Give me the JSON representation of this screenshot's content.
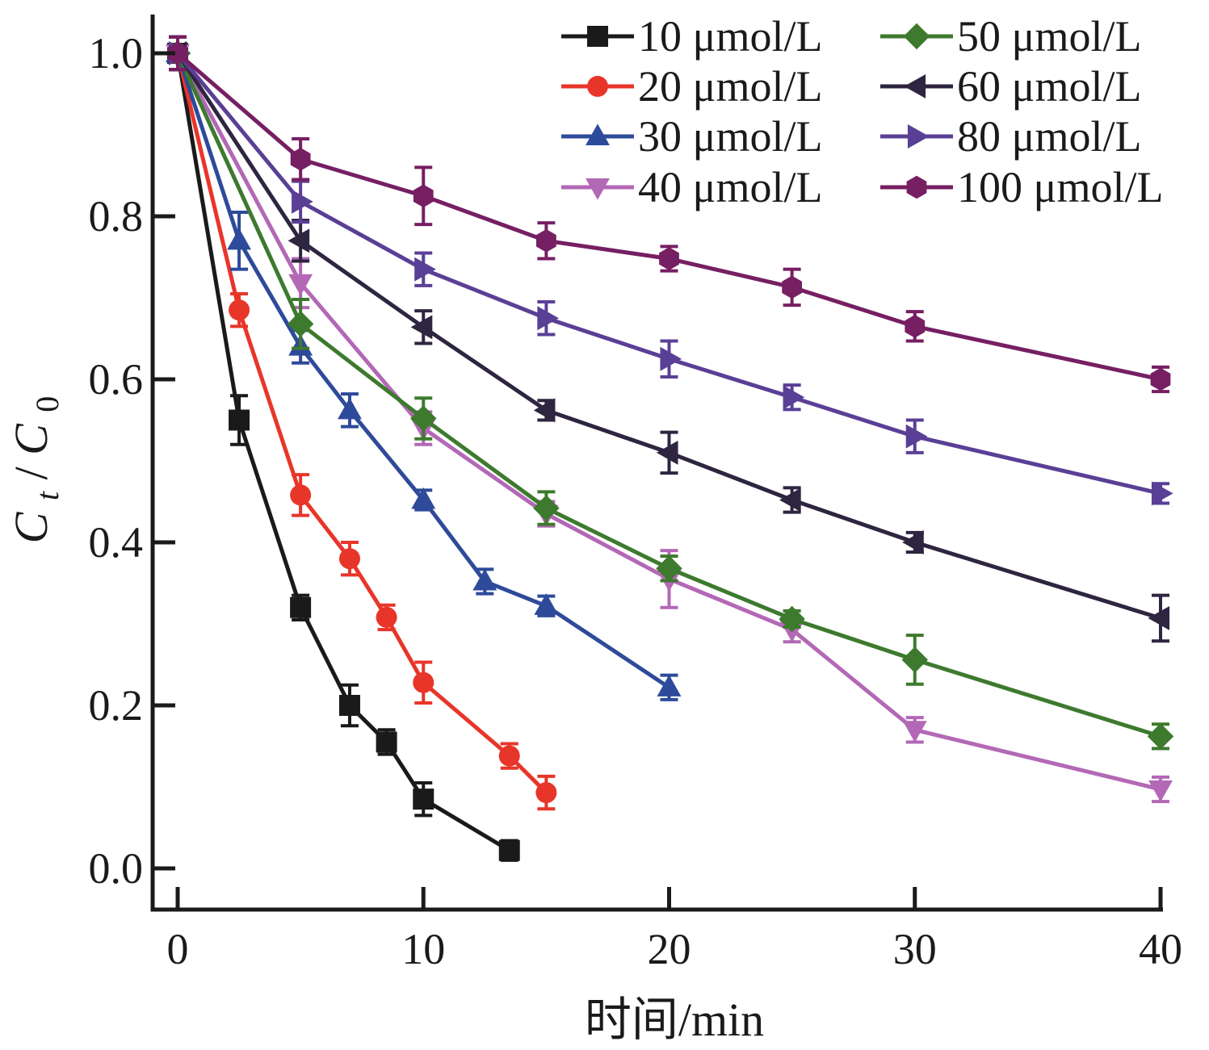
{
  "chart_data": {
    "type": "line",
    "xlabel": "时间/min",
    "ylabel": {
      "main": "C",
      "sub1": "t",
      "sep": "/",
      "main2": "C",
      "sub2": "0"
    },
    "xlim": [
      -1,
      40
    ],
    "ylim": [
      -0.05,
      1.05
    ],
    "xticks": [
      0,
      10,
      20,
      30,
      40
    ],
    "xtick_labels": [
      "0",
      "10",
      "20",
      "30",
      "40"
    ],
    "yticks": [
      0.0,
      0.2,
      0.4,
      0.6,
      0.8,
      1.0
    ],
    "ytick_labels": [
      "0.0",
      "0.2",
      "0.4",
      "0.6",
      "0.8",
      "1.0"
    ],
    "grid": false,
    "legend_position": "top-right",
    "series": [
      {
        "name": "10 μmol/L",
        "color": "#1a1a1a",
        "marker": "square",
        "x": [
          0,
          2.5,
          5,
          7,
          8.5,
          10,
          13.5
        ],
        "y": [
          1.0,
          0.55,
          0.32,
          0.2,
          0.155,
          0.085,
          0.022
        ],
        "err": [
          0.02,
          0.03,
          0.015,
          0.025,
          0.015,
          0.02,
          0.012
        ]
      },
      {
        "name": "20 μmol/L",
        "color": "#e8352a",
        "marker": "circle",
        "x": [
          0,
          2.5,
          5,
          7,
          8.5,
          10,
          13.5,
          15
        ],
        "y": [
          1.0,
          0.685,
          0.458,
          0.38,
          0.308,
          0.228,
          0.138,
          0.093
        ],
        "err": [
          0.02,
          0.02,
          0.025,
          0.02,
          0.015,
          0.025,
          0.015,
          0.02
        ]
      },
      {
        "name": "30 μmol/L",
        "color": "#2e4a9a",
        "marker": "triangle-up",
        "x": [
          0,
          2.5,
          5,
          7,
          10,
          12.5,
          15,
          20
        ],
        "y": [
          1.0,
          0.77,
          0.64,
          0.562,
          0.452,
          0.352,
          0.322,
          0.222
        ],
        "err": [
          0.02,
          0.035,
          0.02,
          0.02,
          0.012,
          0.015,
          0.012,
          0.015
        ]
      },
      {
        "name": "40 μmol/L",
        "color": "#b368b6",
        "marker": "triangle-down",
        "x": [
          0,
          5,
          10,
          15,
          20,
          25,
          30,
          40
        ],
        "y": [
          1.0,
          0.718,
          0.54,
          0.435,
          0.355,
          0.293,
          0.17,
          0.097
        ],
        "err": [
          0.02,
          0.03,
          0.02,
          0.015,
          0.035,
          0.015,
          0.015,
          0.015
        ]
      },
      {
        "name": "50 μmol/L",
        "color": "#3d7a2e",
        "marker": "diamond",
        "x": [
          0,
          5,
          10,
          15,
          20,
          25,
          30,
          40
        ],
        "y": [
          1.0,
          0.668,
          0.552,
          0.442,
          0.368,
          0.306,
          0.256,
          0.162
        ],
        "err": [
          0.02,
          0.03,
          0.025,
          0.02,
          0.015,
          0.01,
          0.03,
          0.015
        ]
      },
      {
        "name": "60 μmol/L",
        "color": "#2e2540",
        "marker": "triangle-left",
        "x": [
          0,
          5,
          10,
          15,
          20,
          25,
          30,
          40
        ],
        "y": [
          1.0,
          0.77,
          0.664,
          0.562,
          0.51,
          0.452,
          0.4,
          0.307
        ],
        "err": [
          0.02,
          0.025,
          0.02,
          0.012,
          0.025,
          0.015,
          0.012,
          0.028
        ]
      },
      {
        "name": "80 μmol/L",
        "color": "#5a3f96",
        "marker": "triangle-right",
        "x": [
          0,
          5,
          10,
          15,
          20,
          25,
          30,
          40
        ],
        "y": [
          1.0,
          0.818,
          0.735,
          0.675,
          0.625,
          0.578,
          0.53,
          0.46
        ],
        "err": [
          0.02,
          0.025,
          0.02,
          0.02,
          0.022,
          0.015,
          0.02,
          0.012
        ]
      },
      {
        "name": "100 μmol/L",
        "color": "#761f63",
        "marker": "hexagon",
        "x": [
          0,
          5,
          10,
          15,
          20,
          25,
          30,
          40
        ],
        "y": [
          1.0,
          0.87,
          0.825,
          0.77,
          0.748,
          0.713,
          0.665,
          0.6
        ],
        "err": [
          0.02,
          0.025,
          0.035,
          0.022,
          0.015,
          0.022,
          0.018,
          0.015
        ]
      }
    ]
  }
}
